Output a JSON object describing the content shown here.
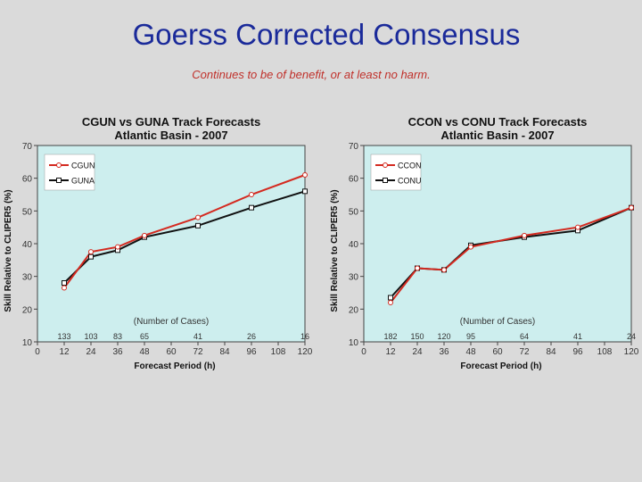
{
  "slide": {
    "title": "Goerss Corrected Consensus",
    "subtitle": "Continues to be of benefit, or at least no harm."
  },
  "colors": {
    "background": "#dadada",
    "plot_bg": "#cdeeee",
    "title_blue": "#1a2a9a",
    "red": "#d42a20",
    "black": "#111111"
  },
  "chart_data": [
    {
      "type": "line",
      "title": "CGUN vs GUNA Track Forecasts",
      "subtitle": "Atlantic Basin - 2007",
      "xlabel": "Forecast Period (h)",
      "ylabel": "Skill Relative to CLIPER5 (%)",
      "xlim": [
        0,
        120
      ],
      "ylim": [
        10,
        70
      ],
      "xticks": [
        0,
        12,
        24,
        36,
        48,
        60,
        72,
        84,
        96,
        108,
        120
      ],
      "yticks": [
        10,
        20,
        30,
        40,
        50,
        60,
        70
      ],
      "grid": false,
      "legend": "top-left",
      "cases_label": "(Number of Cases)",
      "cases": [
        {
          "x": 12,
          "label": "133"
        },
        {
          "x": 24,
          "label": "103"
        },
        {
          "x": 36,
          "label": "83"
        },
        {
          "x": 48,
          "label": "65"
        },
        {
          "x": 72,
          "label": "41"
        },
        {
          "x": 96,
          "label": "26"
        },
        {
          "x": 120,
          "label": "16"
        }
      ],
      "series": [
        {
          "name": "CGUN",
          "color": "#d42a20",
          "x": [
            12,
            24,
            36,
            48,
            72,
            96,
            120
          ],
          "y": [
            26.5,
            37.5,
            39,
            42.5,
            48,
            55,
            61
          ]
        },
        {
          "name": "GUNA",
          "color": "#111111",
          "x": [
            12,
            24,
            36,
            48,
            72,
            96,
            120
          ],
          "y": [
            28,
            36,
            38,
            42,
            45.5,
            51,
            56
          ]
        }
      ]
    },
    {
      "type": "line",
      "title": "CCON vs CONU Track Forecasts",
      "subtitle": "Atlantic Basin - 2007",
      "xlabel": "Forecast Period (h)",
      "ylabel": "Skill Relative to CLIPER5 (%)",
      "xlim": [
        0,
        120
      ],
      "ylim": [
        10,
        70
      ],
      "xticks": [
        0,
        12,
        24,
        36,
        48,
        60,
        72,
        84,
        96,
        108,
        120
      ],
      "yticks": [
        10,
        20,
        30,
        40,
        50,
        60,
        70
      ],
      "grid": false,
      "legend": "top-left",
      "cases_label": "(Number of Cases)",
      "cases": [
        {
          "x": 12,
          "label": "182"
        },
        {
          "x": 24,
          "label": "150"
        },
        {
          "x": 36,
          "label": "120"
        },
        {
          "x": 48,
          "label": "95"
        },
        {
          "x": 72,
          "label": "64"
        },
        {
          "x": 96,
          "label": "41"
        },
        {
          "x": 120,
          "label": "24"
        }
      ],
      "series": [
        {
          "name": "CCON",
          "color": "#d42a20",
          "x": [
            12,
            24,
            36,
            48,
            72,
            96,
            120
          ],
          "y": [
            22,
            32.5,
            32,
            39,
            42.5,
            45,
            51
          ]
        },
        {
          "name": "CONU",
          "color": "#111111",
          "x": [
            12,
            24,
            36,
            48,
            72,
            96,
            120
          ],
          "y": [
            23.5,
            32.5,
            32,
            39.5,
            42,
            44,
            51
          ]
        }
      ]
    }
  ]
}
